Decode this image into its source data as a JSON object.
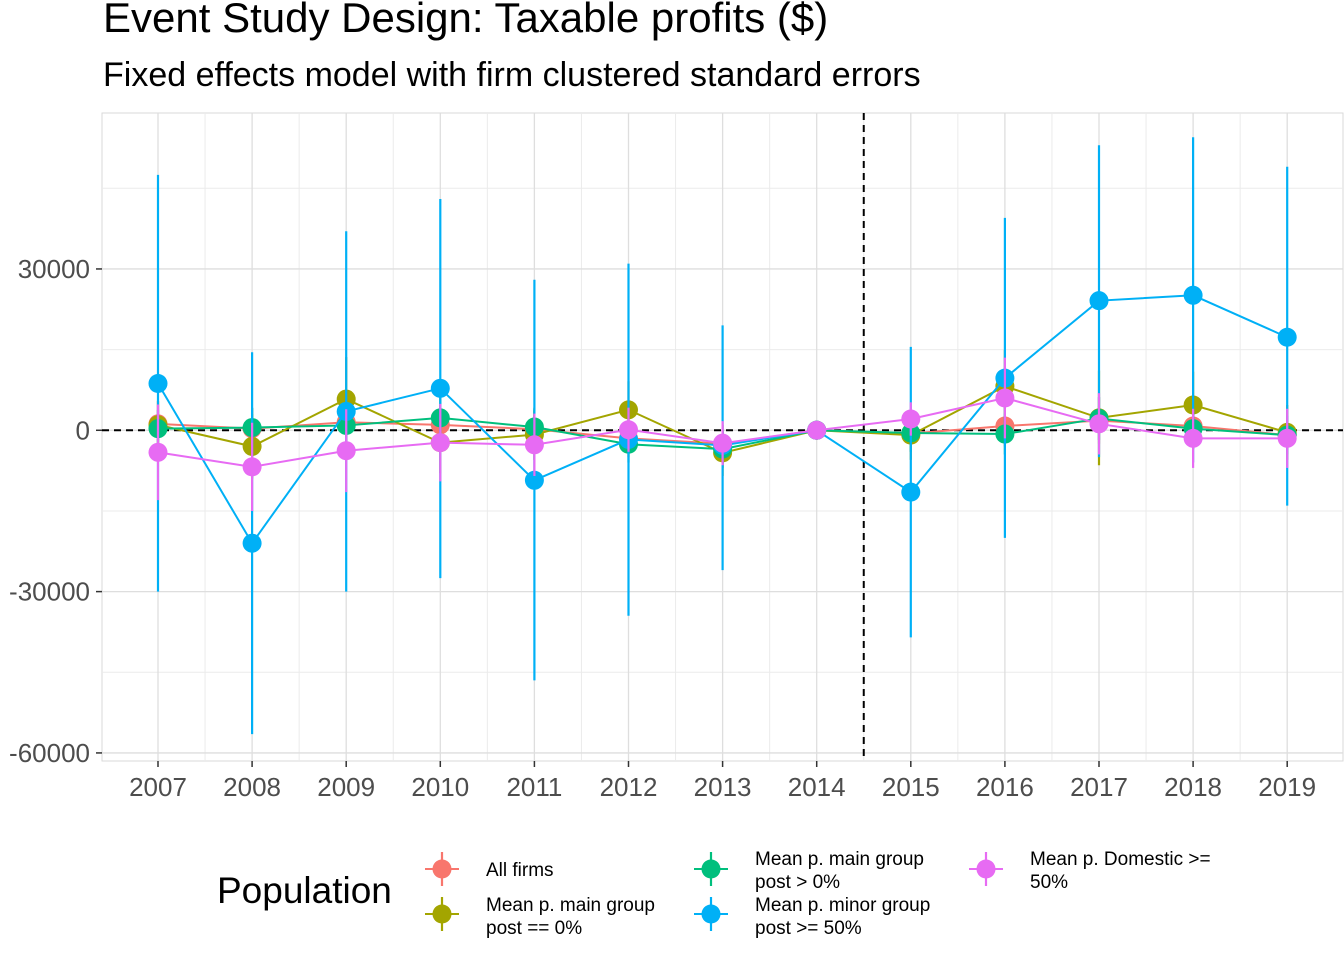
{
  "chart_data": {
    "type": "line",
    "title": "Event Study Design: Taxable profits  ($)",
    "subtitle": "Fixed effects model with firm clustered standard errors",
    "xlabel": "",
    "ylabel": "",
    "categories": [
      "2007",
      "2008",
      "2009",
      "2010",
      "2011",
      "2012",
      "2013",
      "2014",
      "2015",
      "2016",
      "2017",
      "2018",
      "2019"
    ],
    "ylim": [
      -61500,
      59000
    ],
    "y_ticks": [
      -60000,
      -30000,
      0,
      30000
    ],
    "y_tick_labels": [
      "-60000",
      "-30000",
      "0",
      "30000"
    ],
    "grid": true,
    "reference_lines": {
      "horizontal_y": 0,
      "vertical_between": [
        "2014",
        "2015"
      ],
      "style": "dashed"
    },
    "legend": {
      "title": "Population",
      "position": "bottom"
    },
    "series": [
      {
        "name": "All firms",
        "color": "#F8766D",
        "values": [
          1200,
          300,
          1500,
          1000,
          200,
          -1500,
          -2500,
          0,
          -600,
          800,
          1800,
          800,
          -900
        ],
        "ci_low": [
          -3000,
          -3500,
          -2500,
          -2800,
          -3200,
          -5000,
          -6000,
          0,
          -4000,
          -3000,
          -2500,
          -3000,
          -4500
        ],
        "ci_high": [
          5400,
          4100,
          5500,
          4800,
          3600,
          2000,
          1000,
          0,
          2800,
          4600,
          6100,
          4600,
          2700
        ]
      },
      {
        "name": "Mean p. main group post == 0%",
        "color": "#A3A500",
        "values": [
          1000,
          -3000,
          5800,
          -2300,
          -800,
          3800,
          -4200,
          0,
          -900,
          8200,
          2300,
          4700,
          -400
        ],
        "ci_low": [
          -3500,
          -9000,
          -2000,
          -8000,
          -5500,
          -1500,
          -8500,
          0,
          -5500,
          1500,
          -6500,
          -1500,
          -5500
        ],
        "ci_high": [
          5500,
          3000,
          13600,
          3400,
          3900,
          9100,
          100,
          0,
          3700,
          14900,
          11100,
          10900,
          4700
        ]
      },
      {
        "name": "Mean p. main group post > 0%",
        "color": "#00BF7D",
        "values": [
          300,
          500,
          900,
          2300,
          600,
          -2600,
          -3500,
          0,
          -500,
          -700,
          2200,
          300,
          -900
        ],
        "ci_low": [
          -3200,
          -3200,
          -2600,
          -1500,
          -3000,
          -6000,
          -7000,
          0,
          -4000,
          -4500,
          -1800,
          -3500,
          -4500
        ],
        "ci_high": [
          3800,
          4200,
          4400,
          6100,
          4200,
          800,
          0,
          0,
          3000,
          3100,
          6200,
          4100,
          2700
        ]
      },
      {
        "name": "Mean p. minor group post >= 50%",
        "color": "#00B0F6",
        "values": [
          8700,
          -21000,
          3500,
          7800,
          -9300,
          -1700,
          -2800,
          0,
          -11500,
          9700,
          24100,
          25100,
          17300
        ],
        "ci_low": [
          -30000,
          -56500,
          -30000,
          -27500,
          -46500,
          -34500,
          -26000,
          0,
          -38500,
          -20000,
          -5000,
          -6000,
          -14000
        ],
        "ci_high": [
          47500,
          14500,
          37000,
          43000,
          28000,
          31000,
          19500,
          0,
          15500,
          39500,
          53000,
          54500,
          49000
        ]
      },
      {
        "name": "Mean p. Domestic >= 50%",
        "color": "#E76BF3",
        "values": [
          -4100,
          -6800,
          -3800,
          -2300,
          -2700,
          100,
          -2400,
          0,
          2100,
          6000,
          1200,
          -1500,
          -1500
        ],
        "ci_low": [
          -13000,
          -15000,
          -11500,
          -9500,
          -8500,
          -4000,
          -6500,
          0,
          -1000,
          -1500,
          -4500,
          -7000,
          -7000
        ],
        "ci_high": [
          4800,
          1400,
          3900,
          4900,
          3100,
          4200,
          1700,
          0,
          5200,
          13500,
          6900,
          4000,
          4000
        ]
      }
    ]
  },
  "legend_items": [
    {
      "label_lines": [
        "All firms"
      ],
      "color": "#F8766D"
    },
    {
      "label_lines": [
        "Mean p. main group",
        "post == 0%"
      ],
      "color": "#A3A500"
    },
    {
      "label_lines": [
        "Mean p. main group",
        "post > 0%"
      ],
      "color": "#00BF7D"
    },
    {
      "label_lines": [
        "Mean p. minor group",
        "post >= 50%"
      ],
      "color": "#00B0F6"
    },
    {
      "label_lines": [
        "Mean p. Domestic >=",
        "50%"
      ],
      "color": "#E76BF3"
    }
  ]
}
